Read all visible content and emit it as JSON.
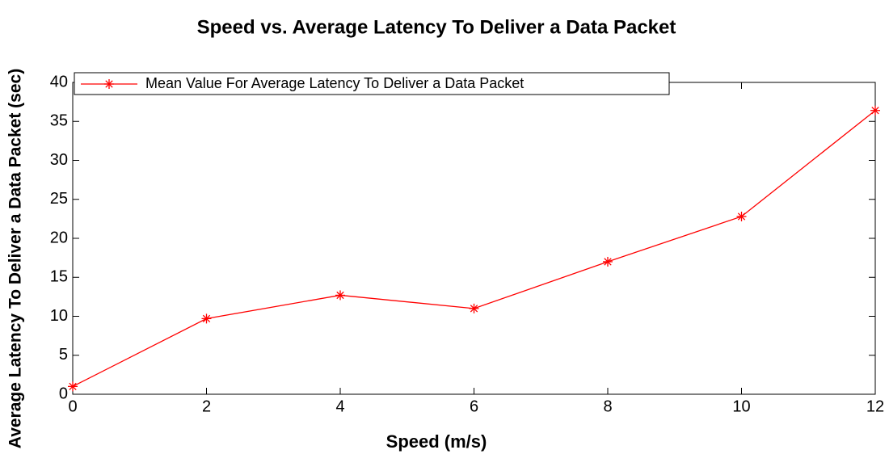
{
  "chart_data": {
    "type": "line",
    "title": "Speed vs. Average Latency To Deliver a Data Packet",
    "x_label": "Speed (m/s)",
    "y_label": "Average Latency To Deliver a Data Packet (sec)",
    "x": [
      0,
      2,
      4,
      6,
      8,
      10,
      12
    ],
    "series": [
      {
        "name": "Mean Value For Average Latency To Deliver a Data Packet",
        "color": "#ff0000",
        "values": [
          1,
          9.7,
          12.7,
          11,
          17,
          22.8,
          36.4
        ]
      }
    ],
    "xlim": [
      0,
      12
    ],
    "xticks": [
      0,
      2,
      4,
      6,
      8,
      10,
      12
    ],
    "ylim": [
      0,
      40
    ],
    "yticks": [
      0,
      5,
      10,
      15,
      20,
      25,
      30,
      35,
      40
    ],
    "grid": false,
    "legend": "top-left"
  }
}
